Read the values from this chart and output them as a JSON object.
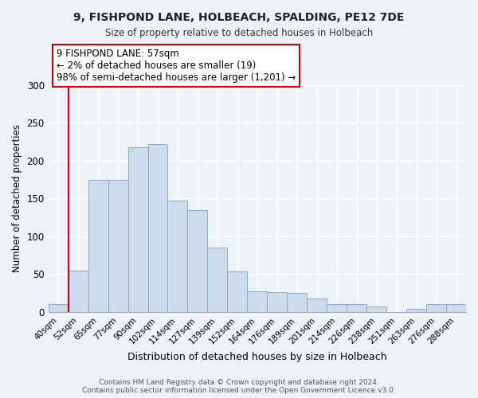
{
  "title": "9, FISHPOND LANE, HOLBEACH, SPALDING, PE12 7DE",
  "subtitle": "Size of property relative to detached houses in Holbeach",
  "xlabel": "Distribution of detached houses by size in Holbeach",
  "ylabel": "Number of detached properties",
  "bin_labels": [
    "40sqm",
    "52sqm",
    "65sqm",
    "77sqm",
    "90sqm",
    "102sqm",
    "114sqm",
    "127sqm",
    "139sqm",
    "152sqm",
    "164sqm",
    "176sqm",
    "189sqm",
    "201sqm",
    "214sqm",
    "226sqm",
    "238sqm",
    "251sqm",
    "263sqm",
    "276sqm",
    "288sqm"
  ],
  "bar_values": [
    10,
    55,
    175,
    175,
    218,
    222,
    147,
    135,
    85,
    54,
    27,
    26,
    25,
    18,
    10,
    10,
    7,
    0,
    4,
    10,
    10
  ],
  "bar_color": "#ccdcec",
  "bar_edge_color": "#88aac8",
  "vline_x_idx": 1,
  "vline_color": "#cc0000",
  "annotation_text": "9 FISHPOND LANE: 57sqm\n← 2% of detached houses are smaller (19)\n98% of semi-detached houses are larger (1,201) →",
  "annotation_box_color": "#ffffff",
  "annotation_box_edge": "#cc0000",
  "ylim": [
    0,
    300
  ],
  "yticks": [
    0,
    50,
    100,
    150,
    200,
    250,
    300
  ],
  "footer_line1": "Contains HM Land Registry data © Crown copyright and database right 2024.",
  "footer_line2": "Contains public sector information licensed under the Open Government Licence v3.0.",
  "bg_color": "#eef2f7"
}
